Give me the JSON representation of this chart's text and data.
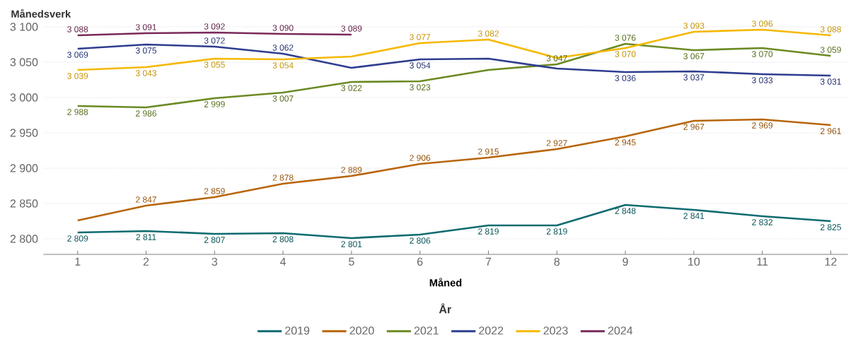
{
  "chart_data": {
    "type": "line",
    "ylabel": "Månedsverk",
    "xlabel": "Måned",
    "legend_title": "År",
    "x": [
      1,
      2,
      3,
      4,
      5,
      6,
      7,
      8,
      9,
      10,
      11,
      12
    ],
    "xlim": [
      0.5,
      12.25
    ],
    "xticks": [
      1,
      2,
      3,
      4,
      5,
      6,
      7,
      8,
      9,
      10,
      11,
      12
    ],
    "ylim": [
      2778,
      3100
    ],
    "yticks": [
      {
        "value": 2800,
        "label": "2 800"
      },
      {
        "value": 2850,
        "label": "2 850"
      },
      {
        "value": 2900,
        "label": "2 900"
      },
      {
        "value": 2950,
        "label": "2 950"
      },
      {
        "value": 3000,
        "label": "3 000"
      },
      {
        "value": 3050,
        "label": "3 050"
      },
      {
        "value": 3100,
        "label": "3 100"
      }
    ],
    "grid": "y",
    "legend": "bottom",
    "marker": "none",
    "line_style": "solid",
    "series": [
      {
        "name": "2019",
        "color": "#0e6b6f",
        "values": [
          2809,
          2811,
          2807,
          2808,
          2801,
          2806,
          2819,
          2819,
          2848,
          2841,
          2832,
          2825
        ],
        "value_labels": [
          "2 809",
          "2 811",
          "2 807",
          "2 808",
          "2 801",
          "2 806",
          "2 819",
          "2 819",
          "2 848",
          "2 841",
          "2 832",
          "2 825"
        ]
      },
      {
        "name": "2020",
        "color": "#b8650a",
        "values": [
          2826,
          2847,
          2859,
          2878,
          2889,
          2906,
          2915,
          2927,
          2945,
          2967,
          2969,
          2961
        ],
        "value_labels": [
          null,
          "2 847",
          "2 859",
          "2 878",
          "2 889",
          "2 906",
          "2 915",
          "2 927",
          "2 945",
          "2 967",
          "2 969",
          "2 961"
        ]
      },
      {
        "name": "2021",
        "color": "#6b8a23",
        "values": [
          2988,
          2986,
          2999,
          3007,
          3022,
          3023,
          3039,
          3047,
          3076,
          3067,
          3070,
          3059
        ],
        "value_labels": [
          "2 988",
          "2 986",
          "2 999",
          "3 007",
          "3 022",
          "3 023",
          null,
          "3 047",
          "3 076",
          "3 067",
          "3 070",
          "3 059"
        ]
      },
      {
        "name": "2022",
        "color": "#2e3d8f",
        "values": [
          3069,
          3075,
          3072,
          3062,
          3042,
          3054,
          3055,
          3041,
          3036,
          3037,
          3033,
          3031
        ],
        "value_labels": [
          "3 069",
          "3 075",
          "3 072",
          "3 062",
          null,
          "3 054",
          null,
          null,
          "3 036",
          "3 037",
          "3 033",
          "3 031"
        ]
      },
      {
        "name": "2023",
        "color": "#f5b800",
        "values": [
          3039,
          3043,
          3055,
          3054,
          3058,
          3077,
          3082,
          3056,
          3070,
          3093,
          3096,
          3088
        ],
        "value_labels": [
          "3 039",
          "3 043",
          "3 055",
          "3 054",
          null,
          "3 077",
          "3 082",
          null,
          "3 070",
          "3 093",
          "3 096",
          "3 088"
        ]
      },
      {
        "name": "2024",
        "color": "#7a2a5a",
        "values": [
          3088,
          3091,
          3092,
          3090,
          3089,
          null,
          null,
          null,
          null,
          null,
          null,
          null
        ],
        "value_labels": [
          "3 088",
          "3 091",
          "3 092",
          "3 090",
          "3 089",
          null,
          null,
          null,
          null,
          null,
          null,
          null
        ]
      }
    ]
  }
}
